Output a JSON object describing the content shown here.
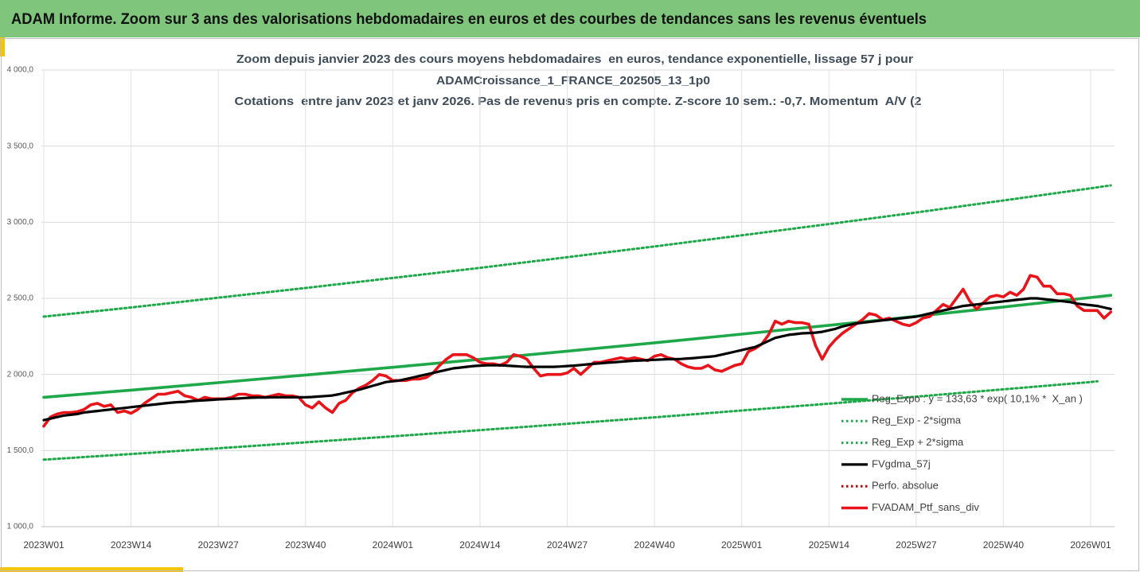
{
  "header": {
    "title": "ADAM Informe. Zoom sur 3 ans des valorisations hebdomadaires en euros et des courbes de tendances sans les revenus éventuels"
  },
  "chart_data": {
    "type": "line",
    "title": [
      "Zoom depuis janvier 2023 des cours moyens hebdomadaires  en euros, tendance exponentielle, lissage 57 j pour",
      "ADAMCroissance_1_FRANCE_202505_13_1p0",
      "Cotations  entre janv 2023 et janv 2026. Pas de revenus pris en compte. Z-score 10 sem.: -0,7. Momentum  A/V (2"
    ],
    "categories": [
      "2023W01",
      null,
      null,
      null,
      null,
      null,
      null,
      null,
      null,
      null,
      null,
      null,
      null,
      "2023W14",
      null,
      null,
      null,
      null,
      null,
      null,
      null,
      null,
      null,
      null,
      null,
      null,
      "2023W27",
      null,
      null,
      null,
      null,
      null,
      null,
      null,
      null,
      null,
      null,
      null,
      null,
      "2023W40",
      null,
      null,
      null,
      null,
      null,
      null,
      null,
      null,
      null,
      null,
      null,
      null,
      "2024W01",
      null,
      null,
      null,
      null,
      null,
      null,
      null,
      null,
      null,
      null,
      null,
      null,
      "2024W14",
      null,
      null,
      null,
      null,
      null,
      null,
      null,
      null,
      null,
      null,
      null,
      null,
      "2024W27",
      null,
      null,
      null,
      null,
      null,
      null,
      null,
      null,
      null,
      null,
      null,
      null,
      "2024W40",
      null,
      null,
      null,
      null,
      null,
      null,
      null,
      null,
      null,
      null,
      null,
      null,
      "2025W01",
      null,
      null,
      null,
      null,
      null,
      null,
      null,
      null,
      null,
      null,
      null,
      null,
      "2025W14",
      null,
      null,
      null,
      null,
      null,
      null,
      null,
      null,
      null,
      null,
      null,
      null,
      "2025W27",
      null,
      null,
      null,
      null,
      null,
      null,
      null,
      null,
      null,
      null,
      null,
      null,
      "2025W40",
      null,
      null,
      null,
      null,
      null,
      null,
      null,
      null,
      null,
      null,
      null,
      null,
      "2026W01",
      null,
      null,
      null
    ],
    "ylim": [
      1000,
      4000
    ],
    "yticks": [
      {
        "value": 1000,
        "label": "1 000,0"
      },
      {
        "value": 1500,
        "label": "1 500,0"
      },
      {
        "value": 2000,
        "label": "2 000,0"
      },
      {
        "value": 2500,
        "label": "2 500,0"
      },
      {
        "value": 3000,
        "label": "3 000,0"
      },
      {
        "value": 3500,
        "label": "3 500,0"
      },
      {
        "value": 4000,
        "label": "4 000,0"
      }
    ],
    "grid": true,
    "legend": "lower right",
    "series": [
      {
        "name": "Reg_Expo : y = 133,63 * exp( 10,1% *  X_an )",
        "color": "#1fa84a",
        "style": "solid",
        "x": [
          0,
          13,
          26,
          39,
          52,
          65,
          78,
          91,
          104,
          117,
          130,
          143,
          156,
          159
        ],
        "values": [
          1850,
          1897,
          1946,
          1996,
          2047,
          2099,
          2153,
          2208,
          2265,
          2323,
          2382,
          2443,
          2505,
          2520
        ]
      },
      {
        "name": "Reg_Exp - 2*sigma",
        "color": "#1fa84a",
        "style": "dotted",
        "x": [
          0,
          13,
          26,
          39,
          52,
          65,
          78,
          91,
          104,
          117,
          130,
          143,
          156,
          157
        ],
        "values": [
          1440,
          1477,
          1515,
          1554,
          1593,
          1634,
          1676,
          1718,
          1763,
          1808,
          1854,
          1902,
          1950,
          1955
        ]
      },
      {
        "name": "Reg_Exp + 2*sigma",
        "color": "#1fa84a",
        "style": "dotted",
        "x": [
          0,
          13,
          26,
          39,
          52,
          65,
          78,
          91,
          104,
          117,
          130,
          143,
          156,
          159
        ],
        "values": [
          2380,
          2440,
          2504,
          2568,
          2634,
          2700,
          2770,
          2841,
          2914,
          2988,
          3064,
          3143,
          3223,
          3242
        ]
      },
      {
        "name": "FVgdma_57j",
        "color": "#000000",
        "style": "solid",
        "values": [
          1700,
          1710,
          1720,
          1730,
          1735,
          1740,
          1750,
          1755,
          1760,
          1765,
          1770,
          1775,
          1780,
          1785,
          1790,
          1795,
          1800,
          1805,
          1810,
          1815,
          1818,
          1820,
          1825,
          1828,
          1830,
          1833,
          1836,
          1838,
          1840,
          1842,
          1845,
          1847,
          1848,
          1849,
          1850,
          1850,
          1850,
          1850,
          1850,
          1850,
          1852,
          1855,
          1858,
          1862,
          1870,
          1880,
          1890,
          1900,
          1912,
          1925,
          1937,
          1950,
          1955,
          1960,
          1970,
          1980,
          1990,
          2000,
          2010,
          2020,
          2030,
          2040,
          2045,
          2050,
          2055,
          2058,
          2060,
          2060,
          2060,
          2058,
          2055,
          2052,
          2050,
          2050,
          2050,
          2050,
          2050,
          2052,
          2055,
          2058,
          2062,
          2066,
          2070,
          2073,
          2077,
          2080,
          2084,
          2087,
          2090,
          2092,
          2094,
          2096,
          2098,
          2100,
          2100,
          2102,
          2105,
          2108,
          2112,
          2116,
          2120,
          2130,
          2140,
          2150,
          2160,
          2170,
          2180,
          2200,
          2220,
          2240,
          2250,
          2260,
          2265,
          2270,
          2272,
          2275,
          2280,
          2290,
          2300,
          2315,
          2325,
          2335,
          2340,
          2345,
          2350,
          2355,
          2360,
          2365,
          2370,
          2375,
          2380,
          2390,
          2400,
          2410,
          2420,
          2430,
          2440,
          2450,
          2455,
          2460,
          2465,
          2470,
          2475,
          2480,
          2485,
          2490,
          2495,
          2500,
          2500,
          2495,
          2490,
          2485,
          2480,
          2475,
          2465,
          2460,
          2455,
          2450,
          2440,
          2430
        ]
      },
      {
        "name": "Perfo. absolue",
        "color": "#c00000",
        "style": "dotted"
      },
      {
        "name": "FVADAM_Ptf_sans_div",
        "color": "#e8141a",
        "style": "solid",
        "values": [
          1660,
          1720,
          1740,
          1750,
          1750,
          1755,
          1770,
          1800,
          1810,
          1790,
          1800,
          1750,
          1760,
          1745,
          1770,
          1810,
          1840,
          1870,
          1870,
          1880,
          1890,
          1860,
          1850,
          1830,
          1850,
          1840,
          1840,
          1840,
          1850,
          1870,
          1870,
          1860,
          1860,
          1850,
          1860,
          1870,
          1860,
          1860,
          1850,
          1800,
          1780,
          1820,
          1780,
          1750,
          1810,
          1830,
          1880,
          1910,
          1930,
          1960,
          2000,
          1990,
          1960,
          1960,
          1960,
          1970,
          1970,
          1980,
          2010,
          2060,
          2100,
          2130,
          2130,
          2130,
          2110,
          2080,
          2070,
          2070,
          2060,
          2080,
          2130,
          2120,
          2100,
          2040,
          1990,
          2000,
          2000,
          2000,
          2010,
          2040,
          2000,
          2040,
          2080,
          2080,
          2090,
          2100,
          2110,
          2100,
          2110,
          2100,
          2090,
          2120,
          2130,
          2110,
          2100,
          2070,
          2050,
          2040,
          2040,
          2060,
          2030,
          2020,
          2040,
          2060,
          2070,
          2150,
          2170,
          2200,
          2260,
          2350,
          2330,
          2350,
          2340,
          2340,
          2330,
          2190,
          2100,
          2180,
          2230,
          2270,
          2300,
          2330,
          2360,
          2400,
          2390,
          2360,
          2370,
          2350,
          2330,
          2320,
          2340,
          2370,
          2380,
          2420,
          2460,
          2440,
          2500,
          2560,
          2480,
          2430,
          2470,
          2510,
          2520,
          2510,
          2540,
          2520,
          2560,
          2650,
          2640,
          2580,
          2580,
          2530,
          2530,
          2520,
          2450,
          2420,
          2420,
          2420,
          2370,
          2410
        ]
      }
    ]
  }
}
